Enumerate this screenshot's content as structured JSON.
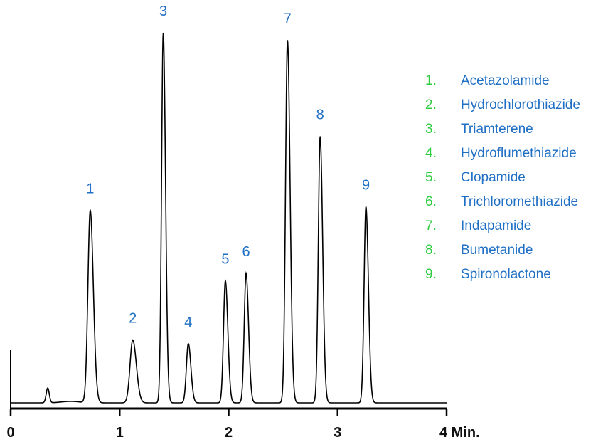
{
  "colors": {
    "accent": "#1f6fc4",
    "legend_number": "#2ecc40",
    "axis": "#000000",
    "trace": "#000000"
  },
  "chart_data": {
    "type": "line",
    "title": "",
    "xlabel": "",
    "ylabel": "",
    "xlim": [
      0,
      4
    ],
    "ylim": [
      0,
      1
    ],
    "x_ticks": [
      "0",
      "1",
      "2",
      "3",
      "4 Min."
    ],
    "grid": false,
    "legend_position": "right",
    "baseline": 0.0,
    "peaks": [
      {
        "label": "1",
        "rt": 0.73,
        "height": 0.52,
        "width": 0.03
      },
      {
        "label": "2",
        "rt": 1.12,
        "height": 0.17,
        "width": 0.035
      },
      {
        "label": "3",
        "rt": 1.4,
        "height": 1.0,
        "width": 0.022
      },
      {
        "label": "4",
        "rt": 1.63,
        "height": 0.16,
        "width": 0.025
      },
      {
        "label": "5",
        "rt": 1.97,
        "height": 0.33,
        "width": 0.024
      },
      {
        "label": "6",
        "rt": 2.16,
        "height": 0.35,
        "width": 0.024
      },
      {
        "label": "7",
        "rt": 2.54,
        "height": 0.98,
        "width": 0.025
      },
      {
        "label": "8",
        "rt": 2.84,
        "height": 0.72,
        "width": 0.024
      },
      {
        "label": "9",
        "rt": 3.26,
        "height": 0.53,
        "width": 0.024
      }
    ],
    "minor_peaks": [
      {
        "rt": 0.34,
        "height": 0.04,
        "width": 0.02
      }
    ],
    "legend": [
      {
        "num": "1.",
        "name": "Acetazolamide"
      },
      {
        "num": "2.",
        "name": "Hydrochlorothiazide"
      },
      {
        "num": "3.",
        "name": "Triamterene"
      },
      {
        "num": "4.",
        "name": "Hydroflumethiazide"
      },
      {
        "num": "5.",
        "name": "Clopamide"
      },
      {
        "num": "6.",
        "name": "Trichloromethiazide"
      },
      {
        "num": "7.",
        "name": "Indapamide"
      },
      {
        "num": "8.",
        "name": "Bumetanide"
      },
      {
        "num": "9.",
        "name": "Spironolactone"
      }
    ]
  }
}
